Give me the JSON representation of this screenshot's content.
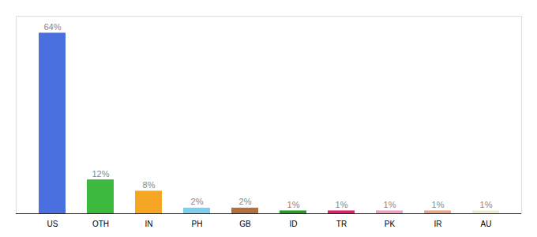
{
  "chart_data": {
    "type": "bar",
    "categories": [
      "US",
      "OTH",
      "IN",
      "PH",
      "GB",
      "ID",
      "TR",
      "PK",
      "IR",
      "AU"
    ],
    "values": [
      64,
      12,
      8,
      2,
      2,
      1,
      1,
      1,
      1,
      1
    ],
    "value_labels": [
      "64%",
      "12%",
      "8%",
      "2%",
      "2%",
      "1%",
      "1%",
      "1%",
      "1%",
      "1%"
    ],
    "colors": [
      "#4a6fdf",
      "#3dba3d",
      "#f5a623",
      "#7ecfee",
      "#b07040",
      "#22a022",
      "#e8196e",
      "#f0a0c0",
      "#e8a888",
      "#f0ecd0"
    ],
    "ylim": [
      0,
      70
    ],
    "data_labels": true,
    "tick_labels": "x",
    "grid": false
  }
}
